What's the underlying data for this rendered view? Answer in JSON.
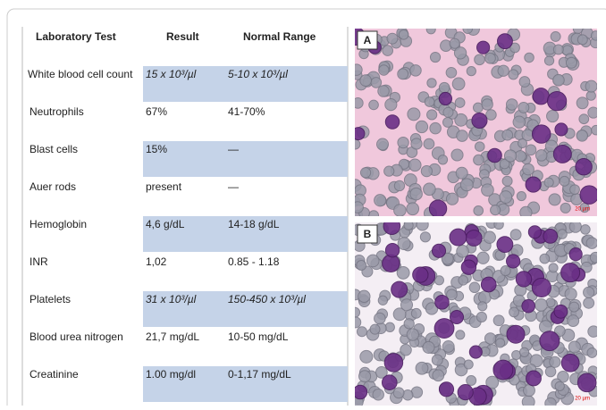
{
  "table": {
    "header": [
      "Laboratory Test",
      "Result",
      "Normal Range"
    ],
    "rows": [
      [
        "White blood cell count",
        "15 x 10³/µl",
        "5-10 x 10³/µl"
      ],
      [
        "Neutrophils",
        "67%",
        "41-70%"
      ],
      [
        "Blast cells",
        "15%",
        "—"
      ],
      [
        "Auer rods",
        "present",
        "—"
      ],
      [
        "Hemoglobin",
        "4,6 g/dL",
        "14-18 g/dL"
      ],
      [
        "INR",
        "1,02",
        "0.85 - 1.18"
      ],
      [
        "Platelets",
        "31 x 10³/µl",
        "150-450 x 10³/µl"
      ],
      [
        "Blood urea nitrogen",
        "21,7 mg/dL",
        "10-50 mg/dL"
      ],
      [
        "Creatinine",
        "1.00 mg/dl",
        "0-1,17 mg/dL"
      ]
    ]
  },
  "figure": {
    "panels": [
      {
        "label": "A",
        "scale": "20 µm"
      },
      {
        "label": "B",
        "scale": "20 µm"
      }
    ]
  }
}
